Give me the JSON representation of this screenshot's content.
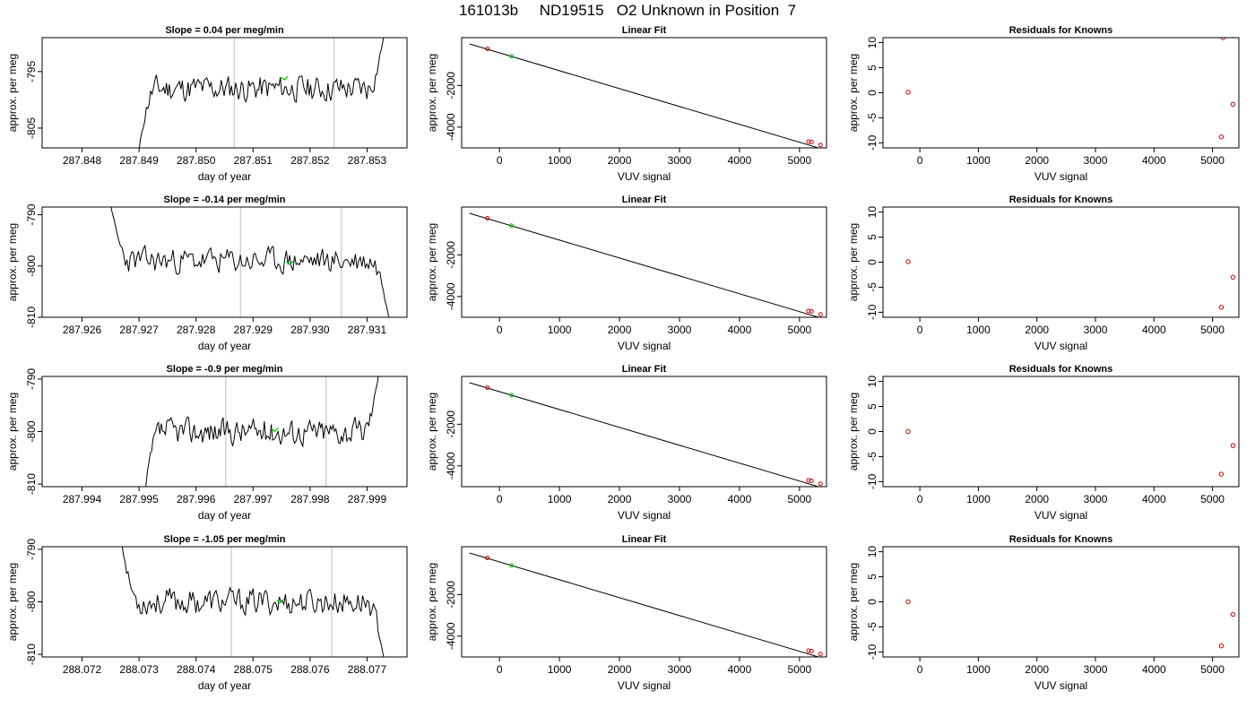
{
  "page": {
    "title": "161013b     ND19515   O2 Unknown in Position  7"
  },
  "chart_data": [
    {
      "type": "line",
      "title": "Slope =  0.04  per meg/min",
      "xlabel": "day of year",
      "ylabel": "approx. per meg",
      "xlim": [
        287.8473,
        287.8537
      ],
      "ylim": [
        -808.5,
        -789.0
      ],
      "xticks": [
        287.848,
        287.849,
        287.85,
        287.851,
        287.852,
        287.853
      ],
      "xtick_labels": [
        "287.848",
        "287.849",
        "287.850",
        "287.851",
        "287.852",
        "287.853"
      ],
      "yticks": [
        -805,
        -795
      ],
      "ytick_labels": [
        "-805",
        "-795"
      ],
      "vlines": [
        287.85067,
        287.85242
      ],
      "marker": [
        287.85155,
        -796.3
      ],
      "x_start": 287.849,
      "x_end": 287.8533,
      "y_start": -809,
      "y_end": -788,
      "base": -798,
      "noise": 1.3,
      "seed": 11
    },
    {
      "type": "line",
      "title": "Linear Fit",
      "xlabel": "VUV signal",
      "ylabel": "approx. per meg",
      "xlim": [
        -630,
        5450
      ],
      "ylim": [
        -5000,
        300
      ],
      "xticks": [
        0,
        1000,
        2000,
        3000,
        4000,
        5000
      ],
      "xtick_labels": [
        "0",
        "1000",
        "2000",
        "3000",
        "4000",
        "5000"
      ],
      "yticks": [
        -4000,
        -2000
      ],
      "ytick_labels": [
        "-4000",
        "-2000"
      ],
      "line": [
        [
          -500,
          0
        ],
        [
          5350,
          -5030
        ]
      ],
      "knowns": [
        [
          -200,
          -240
        ],
        [
          5150,
          -4700
        ],
        [
          5200,
          -4720
        ],
        [
          5350,
          -4860
        ]
      ],
      "unknown": [
        [
          200,
          -600
        ]
      ]
    },
    {
      "type": "scatter",
      "title": "Residuals for Knowns",
      "xlabel": "VUV signal",
      "ylabel": "approx. per meg",
      "xlim": [
        -630,
        5450
      ],
      "ylim": [
        -11,
        11
      ],
      "xticks": [
        0,
        1000,
        2000,
        3000,
        4000,
        5000
      ],
      "xtick_labels": [
        "0",
        "1000",
        "2000",
        "3000",
        "4000",
        "5000"
      ],
      "yticks": [
        -10,
        -5,
        0,
        5,
        10
      ],
      "ytick_labels": [
        "-10",
        "-5",
        "0",
        "5",
        "10"
      ],
      "points": [
        [
          -200,
          0.1
        ],
        [
          5150,
          -8.8
        ],
        [
          5180,
          11.0
        ],
        [
          5350,
          -2.3
        ]
      ]
    },
    {
      "type": "line",
      "title": "Slope =  -0.14  per meg/min",
      "xlabel": "day of year",
      "ylabel": "approx. per meg",
      "xlim": [
        287.9253,
        287.9317
      ],
      "ylim": [
        -810,
        -788.5
      ],
      "xticks": [
        287.926,
        287.927,
        287.928,
        287.929,
        287.93,
        287.931
      ],
      "xtick_labels": [
        "287.926",
        "287.927",
        "287.928",
        "287.929",
        "287.930",
        "287.931"
      ],
      "yticks": [
        -810,
        -800,
        -790
      ],
      "ytick_labels": [
        "-810",
        "-800",
        "-790"
      ],
      "vlines": [
        287.92878,
        287.93055
      ],
      "marker": [
        287.92965,
        -799.5
      ],
      "x_start": 287.9265,
      "x_end": 287.9314,
      "y_start": -788,
      "y_end": -811,
      "base": -799,
      "noise": 1.4,
      "seed": 23
    },
    {
      "type": "line",
      "title": "Linear Fit",
      "xlabel": "VUV signal",
      "ylabel": "approx. per meg",
      "xlim": [
        -630,
        5450
      ],
      "ylim": [
        -5000,
        300
      ],
      "xticks": [
        0,
        1000,
        2000,
        3000,
        4000,
        5000
      ],
      "xtick_labels": [
        "0",
        "1000",
        "2000",
        "3000",
        "4000",
        "5000"
      ],
      "yticks": [
        -4000,
        -2000
      ],
      "ytick_labels": [
        "-4000",
        "-2000"
      ],
      "line": [
        [
          -500,
          0
        ],
        [
          5350,
          -5030
        ]
      ],
      "knowns": [
        [
          -200,
          -240
        ],
        [
          5150,
          -4700
        ],
        [
          5200,
          -4720
        ],
        [
          5350,
          -4860
        ]
      ],
      "unknown": [
        [
          200,
          -600
        ]
      ]
    },
    {
      "type": "scatter",
      "title": "Residuals for Knowns",
      "xlabel": "VUV signal",
      "ylabel": "approx. per meg",
      "xlim": [
        -630,
        5450
      ],
      "ylim": [
        -11,
        11
      ],
      "xticks": [
        0,
        1000,
        2000,
        3000,
        4000,
        5000
      ],
      "xtick_labels": [
        "0",
        "1000",
        "2000",
        "3000",
        "4000",
        "5000"
      ],
      "yticks": [
        -10,
        -5,
        0,
        5,
        10
      ],
      "ytick_labels": [
        "-10",
        "-5",
        "0",
        "5",
        "10"
      ],
      "points": [
        [
          -200,
          0.1
        ],
        [
          5150,
          -9.0
        ],
        [
          5350,
          -3.0
        ]
      ]
    },
    {
      "type": "line",
      "title": "Slope =  -0.9  per meg/min",
      "xlabel": "day of year",
      "ylabel": "approx. per meg",
      "xlim": [
        287.9933,
        287.9997
      ],
      "ylim": [
        -810.5,
        -789.5
      ],
      "xticks": [
        287.994,
        287.995,
        287.996,
        287.997,
        287.998,
        287.999
      ],
      "xtick_labels": [
        "287.994",
        "287.995",
        "287.996",
        "287.997",
        "287.998",
        "287.999"
      ],
      "yticks": [
        -810,
        -800,
        -790
      ],
      "ytick_labels": [
        "-810",
        "-800",
        "-790"
      ],
      "vlines": [
        287.99652,
        287.99828
      ],
      "marker": [
        287.99738,
        -799.8
      ],
      "x_start": 287.9951,
      "x_end": 287.9992,
      "y_start": -812,
      "y_end": -789,
      "base": -800,
      "noise": 1.4,
      "seed": 37
    },
    {
      "type": "line",
      "title": "Linear Fit",
      "xlabel": "VUV signal",
      "ylabel": "approx. per meg",
      "xlim": [
        -630,
        5450
      ],
      "ylim": [
        -5000,
        300
      ],
      "xticks": [
        0,
        1000,
        2000,
        3000,
        4000,
        5000
      ],
      "xtick_labels": [
        "0",
        "1000",
        "2000",
        "3000",
        "4000",
        "5000"
      ],
      "yticks": [
        -4000,
        -2000
      ],
      "ytick_labels": [
        "-4000",
        "-2000"
      ],
      "line": [
        [
          -500,
          0
        ],
        [
          5350,
          -5030
        ]
      ],
      "knowns": [
        [
          -200,
          -240
        ],
        [
          5150,
          -4700
        ],
        [
          5200,
          -4720
        ],
        [
          5350,
          -4860
        ]
      ],
      "unknown": [
        [
          200,
          -600
        ]
      ]
    },
    {
      "type": "scatter",
      "title": "Residuals for Knowns",
      "xlabel": "VUV signal",
      "ylabel": "approx. per meg",
      "xlim": [
        -630,
        5450
      ],
      "ylim": [
        -11,
        11
      ],
      "xticks": [
        0,
        1000,
        2000,
        3000,
        4000,
        5000
      ],
      "xtick_labels": [
        "0",
        "1000",
        "2000",
        "3000",
        "4000",
        "5000"
      ],
      "yticks": [
        -10,
        -5,
        0,
        5,
        10
      ],
      "ytick_labels": [
        "-10",
        "-5",
        "0",
        "5",
        "10"
      ],
      "points": [
        [
          -200,
          0.0
        ],
        [
          5150,
          -8.5
        ],
        [
          5350,
          -2.8
        ]
      ]
    },
    {
      "type": "line",
      "title": "Slope =  -1.05  per meg/min",
      "xlabel": "day of year",
      "ylabel": "approx. per meg",
      "xlim": [
        288.0713,
        288.0777
      ],
      "ylim": [
        -810.5,
        -789.5
      ],
      "xticks": [
        288.072,
        288.073,
        288.074,
        288.075,
        288.076,
        288.077
      ],
      "xtick_labels": [
        "288.072",
        "288.073",
        "288.074",
        "288.075",
        "288.076",
        "288.077"
      ],
      "yticks": [
        -810,
        -800,
        -790
      ],
      "ytick_labels": [
        "-810",
        "-800",
        "-790"
      ],
      "vlines": [
        288.07462,
        288.07638
      ],
      "marker": [
        288.07548,
        -800.0
      ],
      "x_start": 288.0727,
      "x_end": 288.0773,
      "y_start": -789,
      "y_end": -811,
      "base": -800,
      "noise": 1.4,
      "seed": 53
    },
    {
      "type": "line",
      "title": "Linear Fit",
      "xlabel": "VUV signal",
      "ylabel": "approx. per meg",
      "xlim": [
        -630,
        5450
      ],
      "ylim": [
        -5000,
        300
      ],
      "xticks": [
        0,
        1000,
        2000,
        3000,
        4000,
        5000
      ],
      "xtick_labels": [
        "0",
        "1000",
        "2000",
        "3000",
        "4000",
        "5000"
      ],
      "yticks": [
        -4000,
        -2000
      ],
      "ytick_labels": [
        "-4000",
        "-2000"
      ],
      "line": [
        [
          -500,
          0
        ],
        [
          5350,
          -5030
        ]
      ],
      "knowns": [
        [
          -200,
          -240
        ],
        [
          5150,
          -4700
        ],
        [
          5200,
          -4720
        ],
        [
          5350,
          -4860
        ]
      ],
      "unknown": [
        [
          200,
          -600
        ]
      ]
    },
    {
      "type": "scatter",
      "title": "Residuals for Knowns",
      "xlabel": "VUV signal",
      "ylabel": "approx. per meg",
      "xlim": [
        -630,
        5450
      ],
      "ylim": [
        -11,
        11
      ],
      "xticks": [
        0,
        1000,
        2000,
        3000,
        4000,
        5000
      ],
      "xtick_labels": [
        "0",
        "1000",
        "2000",
        "3000",
        "4000",
        "5000"
      ],
      "yticks": [
        -10,
        -5,
        0,
        5,
        10
      ],
      "ytick_labels": [
        "-10",
        "-5",
        "0",
        "5",
        "10"
      ],
      "points": [
        [
          -200,
          0.0
        ],
        [
          5150,
          -8.8
        ],
        [
          5350,
          -2.5
        ]
      ]
    }
  ]
}
